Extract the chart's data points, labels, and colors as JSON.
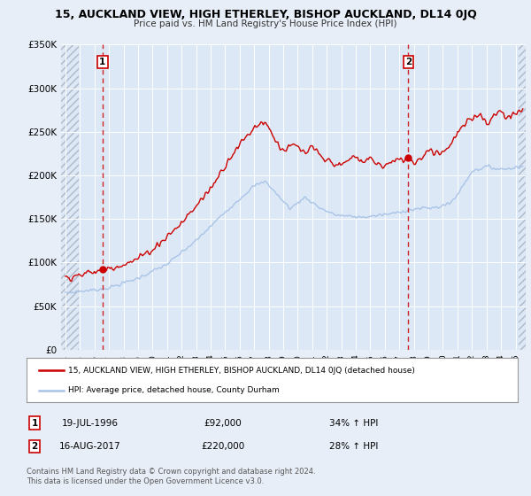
{
  "title": "15, AUCKLAND VIEW, HIGH ETHERLEY, BISHOP AUCKLAND, DL14 0JQ",
  "subtitle": "Price paid vs. HM Land Registry's House Price Index (HPI)",
  "ylim": [
    0,
    350000
  ],
  "yticks": [
    0,
    50000,
    100000,
    150000,
    200000,
    250000,
    300000,
    350000
  ],
  "ytick_labels": [
    "£0",
    "£50K",
    "£100K",
    "£150K",
    "£200K",
    "£250K",
    "£300K",
    "£350K"
  ],
  "xlim_start": 1993.7,
  "xlim_end": 2025.7,
  "hpi_color": "#aac4e8",
  "price_color": "#cc0000",
  "bg_color": "#e8eef8",
  "plot_bg": "#dce8f5",
  "grid_color": "#ffffff",
  "hatch_color": "#b0b8c8",
  "marker1_date": 1996.54,
  "marker1_price": 92000,
  "marker1_label": "19-JUL-1996",
  "marker1_amount": "£92,000",
  "marker1_hpi": "34% ↑ HPI",
  "marker2_date": 2017.62,
  "marker2_price": 220000,
  "marker2_label": "16-AUG-2017",
  "marker2_amount": "£220,000",
  "marker2_hpi": "28% ↑ HPI",
  "legend_line1": "15, AUCKLAND VIEW, HIGH ETHERLEY, BISHOP AUCKLAND, DL14 0JQ (detached house)",
  "legend_line2": "HPI: Average price, detached house, County Durham",
  "footer1": "Contains HM Land Registry data © Crown copyright and database right 2024.",
  "footer2": "This data is licensed under the Open Government Licence v3.0."
}
